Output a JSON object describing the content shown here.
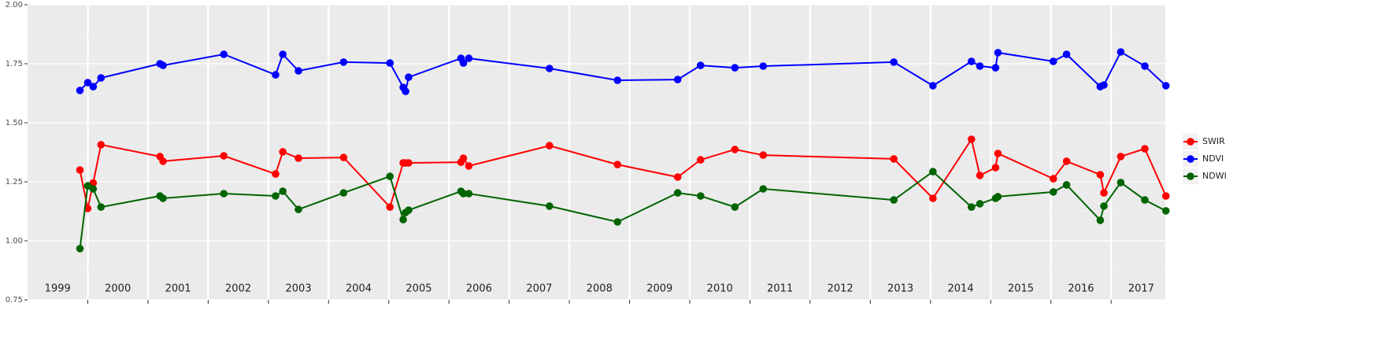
{
  "chart_data": {
    "type": "line",
    "x": [
      1999.87,
      2000.0,
      2000.09,
      2000.22,
      2001.2,
      2001.25,
      2002.26,
      2003.12,
      2003.24,
      2003.5,
      2004.25,
      2005.02,
      2005.24,
      2005.28,
      2005.33,
      2006.2,
      2006.24,
      2006.33,
      2007.67,
      2008.8,
      2009.8,
      2010.18,
      2010.75,
      2011.22,
      2013.39,
      2014.04,
      2014.68,
      2014.82,
      2015.08,
      2015.12,
      2016.04,
      2016.26,
      2016.82,
      2016.88,
      2017.16,
      2017.56,
      2017.91
    ],
    "series": [
      {
        "name": "SWIR",
        "color": "#ff0000",
        "values": [
          1.3,
          1.137,
          1.245,
          1.407,
          1.357,
          1.337,
          1.36,
          1.283,
          1.377,
          1.35,
          1.353,
          1.143,
          1.33,
          1.33,
          1.33,
          1.333,
          1.35,
          1.317,
          1.403,
          1.323,
          1.27,
          1.343,
          1.387,
          1.363,
          1.347,
          1.18,
          1.43,
          1.277,
          1.31,
          1.37,
          1.263,
          1.337,
          1.28,
          1.203,
          1.357,
          1.39,
          1.19
        ]
      },
      {
        "name": "NDVI",
        "color": "#0000ff",
        "values": [
          1.637,
          1.67,
          1.653,
          1.69,
          1.75,
          1.743,
          1.79,
          1.703,
          1.79,
          1.72,
          1.757,
          1.753,
          1.65,
          1.633,
          1.693,
          1.773,
          1.753,
          1.773,
          1.73,
          1.68,
          1.683,
          1.743,
          1.733,
          1.74,
          1.757,
          1.657,
          1.76,
          1.74,
          1.733,
          1.797,
          1.76,
          1.79,
          1.653,
          1.66,
          1.8,
          1.74,
          1.657
        ]
      },
      {
        "name": "NDWI",
        "color": "#006400",
        "values": [
          0.967,
          1.233,
          1.22,
          1.143,
          1.19,
          1.18,
          1.2,
          1.19,
          1.21,
          1.133,
          1.203,
          1.273,
          1.09,
          1.12,
          1.13,
          1.21,
          1.2,
          1.2,
          1.147,
          1.08,
          1.203,
          1.19,
          1.143,
          1.22,
          1.173,
          1.293,
          1.143,
          1.157,
          1.18,
          1.187,
          1.207,
          1.237,
          1.087,
          1.147,
          1.247,
          1.173,
          1.127
        ]
      }
    ],
    "xlim": [
      1999.0,
      2017.9
    ],
    "xticks": [
      2000,
      2001,
      2002,
      2003,
      2004,
      2005,
      2006,
      2007,
      2008,
      2009,
      2010,
      2011,
      2012,
      2013,
      2014,
      2015,
      2016,
      2017
    ],
    "year_labels": [
      "1999",
      "2000",
      "2001",
      "2002",
      "2003",
      "2004",
      "2005",
      "2006",
      "2007",
      "2008",
      "2009",
      "2010",
      "2011",
      "2012",
      "2013",
      "2014",
      "2015",
      "2016",
      "2017"
    ],
    "ylim": [
      0.75,
      2.0
    ],
    "yticks": [
      0.75,
      {
        "value": 1.0,
        "label": "1.00"
      },
      1.25,
      {
        "value": 1.5,
        "label": "1.50"
      },
      1.75,
      {
        "value": 2.0,
        "label": "2.00"
      }
    ],
    "grid": true,
    "legend": "right"
  }
}
